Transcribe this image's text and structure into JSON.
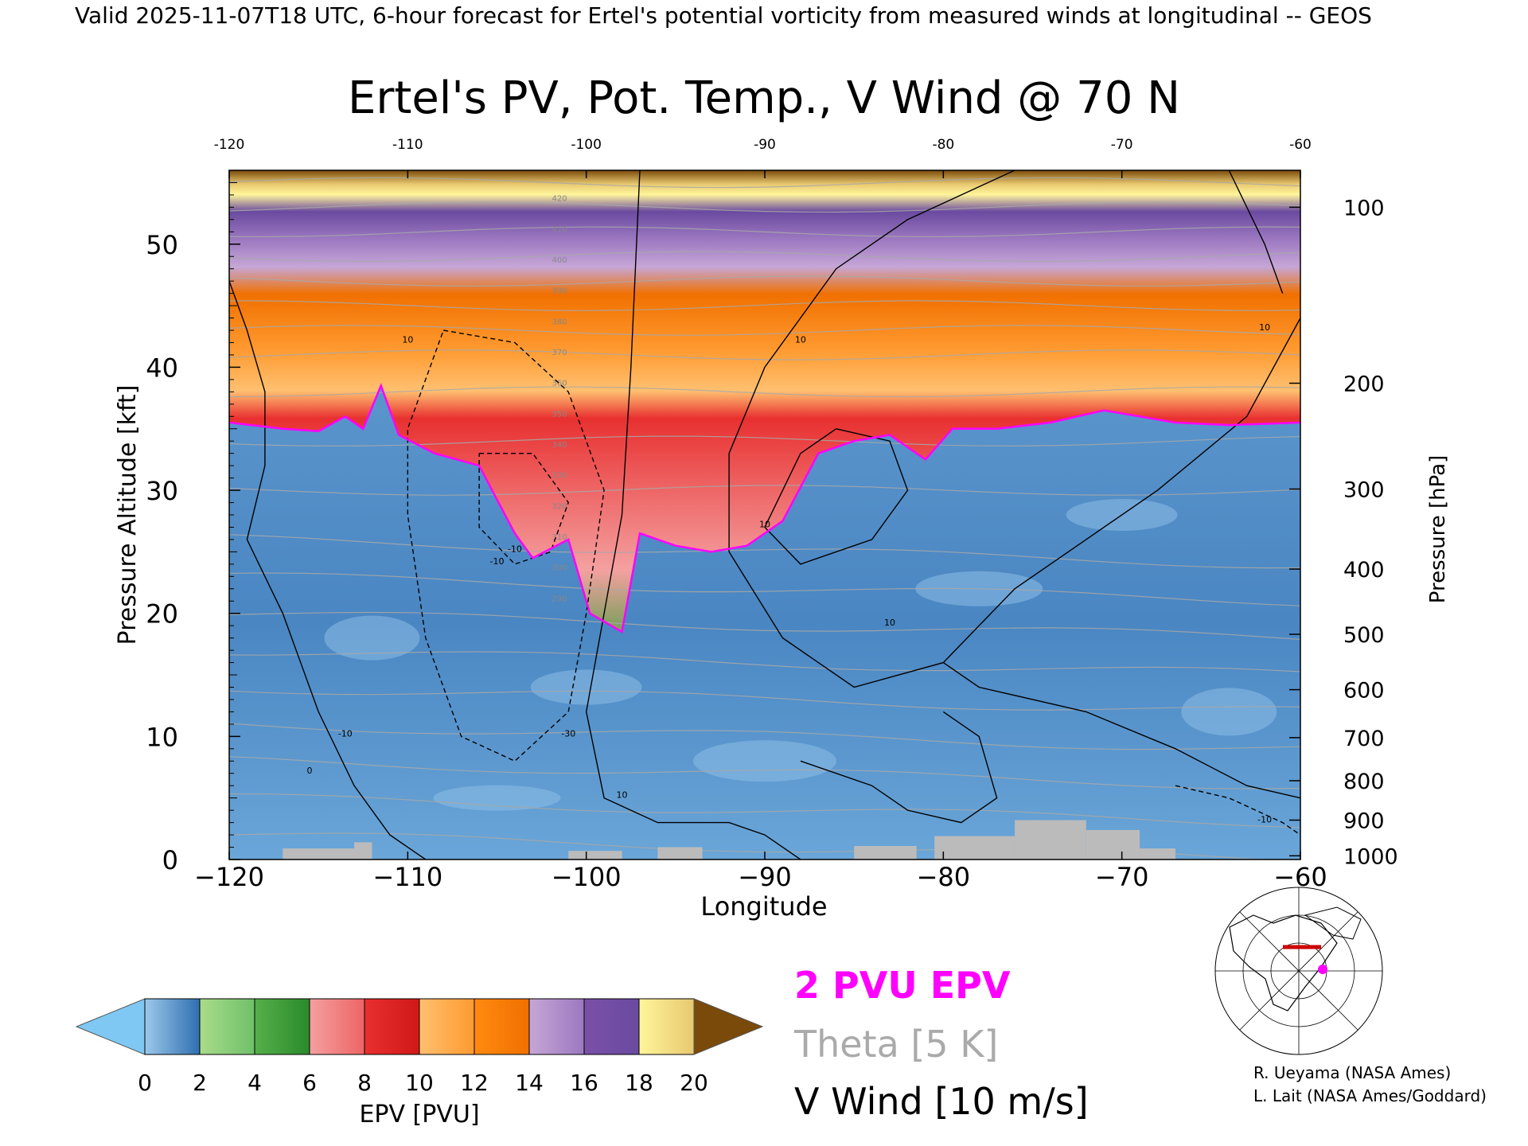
{
  "header": {
    "valid_line": "Valid 2025-11-07T18 UTC, 6-hour forecast for Ertel's potential vorticity from measured winds at longitudinal -- GEOS"
  },
  "chart_data": {
    "type": "heatmap",
    "title": "Ertel's PV, Pot. Temp., V Wind @ 70 N",
    "xlabel": "Longitude",
    "ylabel_left": "Pressure Altitude [kft]",
    "ylabel_right": "Pressure [hPa]",
    "xlim": [
      -120,
      -60
    ],
    "ylim": [
      0,
      56
    ],
    "x_ticks": [
      "-120",
      "-110",
      "-100",
      "-90",
      "-80",
      "-70",
      "-60"
    ],
    "x_ticks_top": [
      "-120",
      "-110",
      "-100",
      "-90",
      "-80",
      "-70",
      "-60"
    ],
    "y_ticks_left": [
      "0",
      "10",
      "20",
      "30",
      "40",
      "50"
    ],
    "y_ticks_right": [
      {
        "label": "100",
        "kft": 53.0
      },
      {
        "label": "200",
        "kft": 38.7
      },
      {
        "label": "300",
        "kft": 30.1
      },
      {
        "label": "400",
        "kft": 23.6
      },
      {
        "label": "500",
        "kft": 18.3
      },
      {
        "label": "600",
        "kft": 13.8
      },
      {
        "label": "700",
        "kft": 9.9
      },
      {
        "label": "800",
        "kft": 6.4
      },
      {
        "label": "900",
        "kft": 3.2
      },
      {
        "label": "1000",
        "kft": 0.3
      }
    ],
    "colorbar": {
      "label": "EPV [PVU]",
      "ticks": [
        "0",
        "2",
        "4",
        "6",
        "8",
        "10",
        "12",
        "14",
        "16",
        "18",
        "20"
      ],
      "under_color": "#7ec8f3",
      "over_color": "#7a4a0a",
      "segments": [
        [
          "#9cc8ea",
          "#2f6fb0"
        ],
        [
          "#a9dc8a",
          "#6fc06a"
        ],
        [
          "#56b04a",
          "#2a8a2a"
        ],
        [
          "#f4a0a0",
          "#ee6464"
        ],
        [
          "#e83030",
          "#d01818"
        ],
        [
          "#ffc070",
          "#ff9a30"
        ],
        [
          "#ff8a10",
          "#f07000"
        ],
        [
          "#c6a6d6",
          "#9c78c0"
        ],
        [
          "#7a50a8",
          "#6a4aa0"
        ],
        [
          "#fff59a",
          "#e8c870"
        ],
        [
          "#b07a30",
          "#7a4a0a"
        ]
      ]
    },
    "fields": {
      "tropopause_2pvu_kft": [
        [
          -120,
          35.5
        ],
        [
          -117,
          35.0
        ],
        [
          -115,
          34.8
        ],
        [
          -113.5,
          36.0
        ],
        [
          -112.5,
          35.0
        ],
        [
          -111.5,
          38.5
        ],
        [
          -110.5,
          34.5
        ],
        [
          -108.5,
          33.0
        ],
        [
          -106,
          32.0
        ],
        [
          -104,
          26.5
        ],
        [
          -103,
          24.5
        ],
        [
          -101,
          26.0
        ],
        [
          -99.8,
          20.0
        ],
        [
          -98,
          18.5
        ],
        [
          -97,
          26.5
        ],
        [
          -95,
          25.5
        ],
        [
          -93,
          25.0
        ],
        [
          -91,
          25.5
        ],
        [
          -89,
          27.5
        ],
        [
          -87,
          33.0
        ],
        [
          -85,
          34.0
        ],
        [
          -83,
          34.5
        ],
        [
          -81,
          32.5
        ],
        [
          -79.5,
          35.0
        ],
        [
          -77,
          35.0
        ],
        [
          -74,
          35.5
        ],
        [
          -71,
          36.5
        ],
        [
          -67,
          35.5
        ],
        [
          -64,
          35.3
        ],
        [
          -60,
          35.5
        ]
      ],
      "terrain": [
        {
          "x0": -117,
          "x1": -113,
          "top_kft": 0.9
        },
        {
          "x0": -113,
          "x1": -112,
          "top_kft": 1.4
        },
        {
          "x0": -101,
          "x1": -98,
          "top_kft": 0.7
        },
        {
          "x0": -96,
          "x1": -93.5,
          "top_kft": 1.0
        },
        {
          "x0": -85,
          "x1": -81.5,
          "top_kft": 1.1
        },
        {
          "x0": -80.5,
          "x1": -76,
          "top_kft": 1.9
        },
        {
          "x0": -76,
          "x1": -72,
          "top_kft": 3.2
        },
        {
          "x0": -72,
          "x1": -69,
          "top_kft": 2.4
        },
        {
          "x0": -69,
          "x1": -67,
          "top_kft": 0.9
        }
      ],
      "vwind_contour_labels": [
        "-10",
        "0",
        "10",
        "-10",
        "10",
        "10",
        "-30",
        "-10",
        "10",
        "10",
        "10",
        "-10"
      ],
      "theta_contour_labels": [
        "420",
        "410",
        "400",
        "390",
        "380",
        "370",
        "360",
        "350",
        "340",
        "330",
        "320",
        "310",
        "300",
        "290"
      ]
    }
  },
  "legend": {
    "epv_2pvu": {
      "text": "2 PVU EPV",
      "color": "#ff00ff"
    },
    "theta": {
      "text": "Theta [5 K]",
      "color": "#aaaaaa"
    },
    "vwind": {
      "text": "V Wind [10 m/s]",
      "color": "#000000"
    }
  },
  "credits": {
    "line1": "R. Ueyama (NASA Ames)",
    "line2": "L. Lait (NASA Ames/Goddard)"
  },
  "inset_map": {
    "marker_color": "#ff00ff",
    "section_color": "#cc0000"
  }
}
